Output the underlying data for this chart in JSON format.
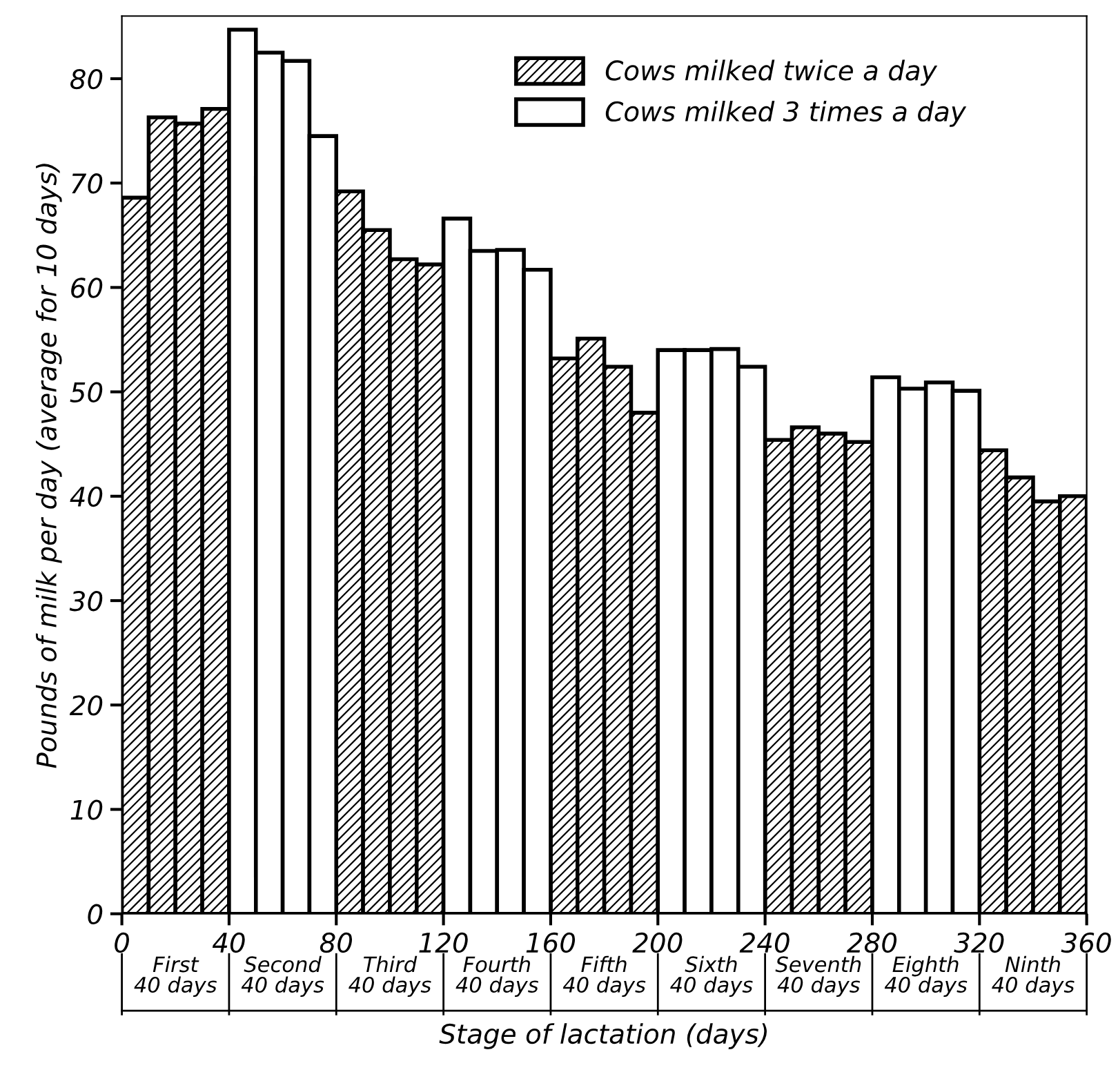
{
  "chart_data": {
    "type": "bar",
    "xlabel": "Stage of lactation (days)",
    "ylabel": "Pounds of milk per day (average for 10 days)",
    "x": [
      5,
      15,
      25,
      35,
      45,
      55,
      65,
      75,
      85,
      95,
      105,
      115,
      125,
      135,
      145,
      155,
      165,
      175,
      185,
      195,
      205,
      215,
      225,
      235,
      245,
      255,
      265,
      275,
      285,
      295,
      305,
      315,
      325,
      335,
      345,
      355
    ],
    "series": [
      {
        "name": "Cows milked twice a day",
        "color": "#000000",
        "values": [
          68.6,
          76.3,
          75.7,
          77.1,
          null,
          null,
          null,
          null,
          69.2,
          65.5,
          62.7,
          62.2,
          null,
          null,
          null,
          null,
          53.2,
          55.1,
          52.4,
          48.0,
          null,
          null,
          null,
          null,
          45.4,
          46.6,
          46.0,
          45.2,
          null,
          null,
          null,
          null,
          44.4,
          41.8,
          39.5,
          40.0
        ]
      },
      {
        "name": "Cows milked 3 times a day",
        "color": "#ffffff",
        "values": [
          null,
          null,
          null,
          null,
          84.7,
          82.5,
          81.7,
          74.5,
          null,
          null,
          null,
          null,
          66.6,
          63.5,
          63.6,
          61.7,
          null,
          null,
          null,
          null,
          54.0,
          54.0,
          54.1,
          52.4,
          null,
          null,
          null,
          null,
          51.4,
          50.3,
          50.9,
          50.1,
          null,
          null,
          null,
          null
        ]
      }
    ],
    "xlim": [
      0,
      360
    ],
    "xticks": [
      0,
      40,
      80,
      120,
      160,
      200,
      240,
      280,
      320,
      360
    ],
    "ylim": [
      0,
      86
    ],
    "yticks": [
      0,
      10,
      20,
      30,
      40,
      50,
      60,
      70,
      80
    ],
    "grid": false,
    "legend": "top right",
    "annotations": [
      "First\n40 days",
      "Second\n40 days",
      "Third\n40 days",
      "Fourth\n40 days",
      "Fifth\n40 days",
      "Sixth\n40 days",
      "Seventh\n40 days",
      "Eighth\n40 days",
      "Ninth\n40 days"
    ]
  }
}
